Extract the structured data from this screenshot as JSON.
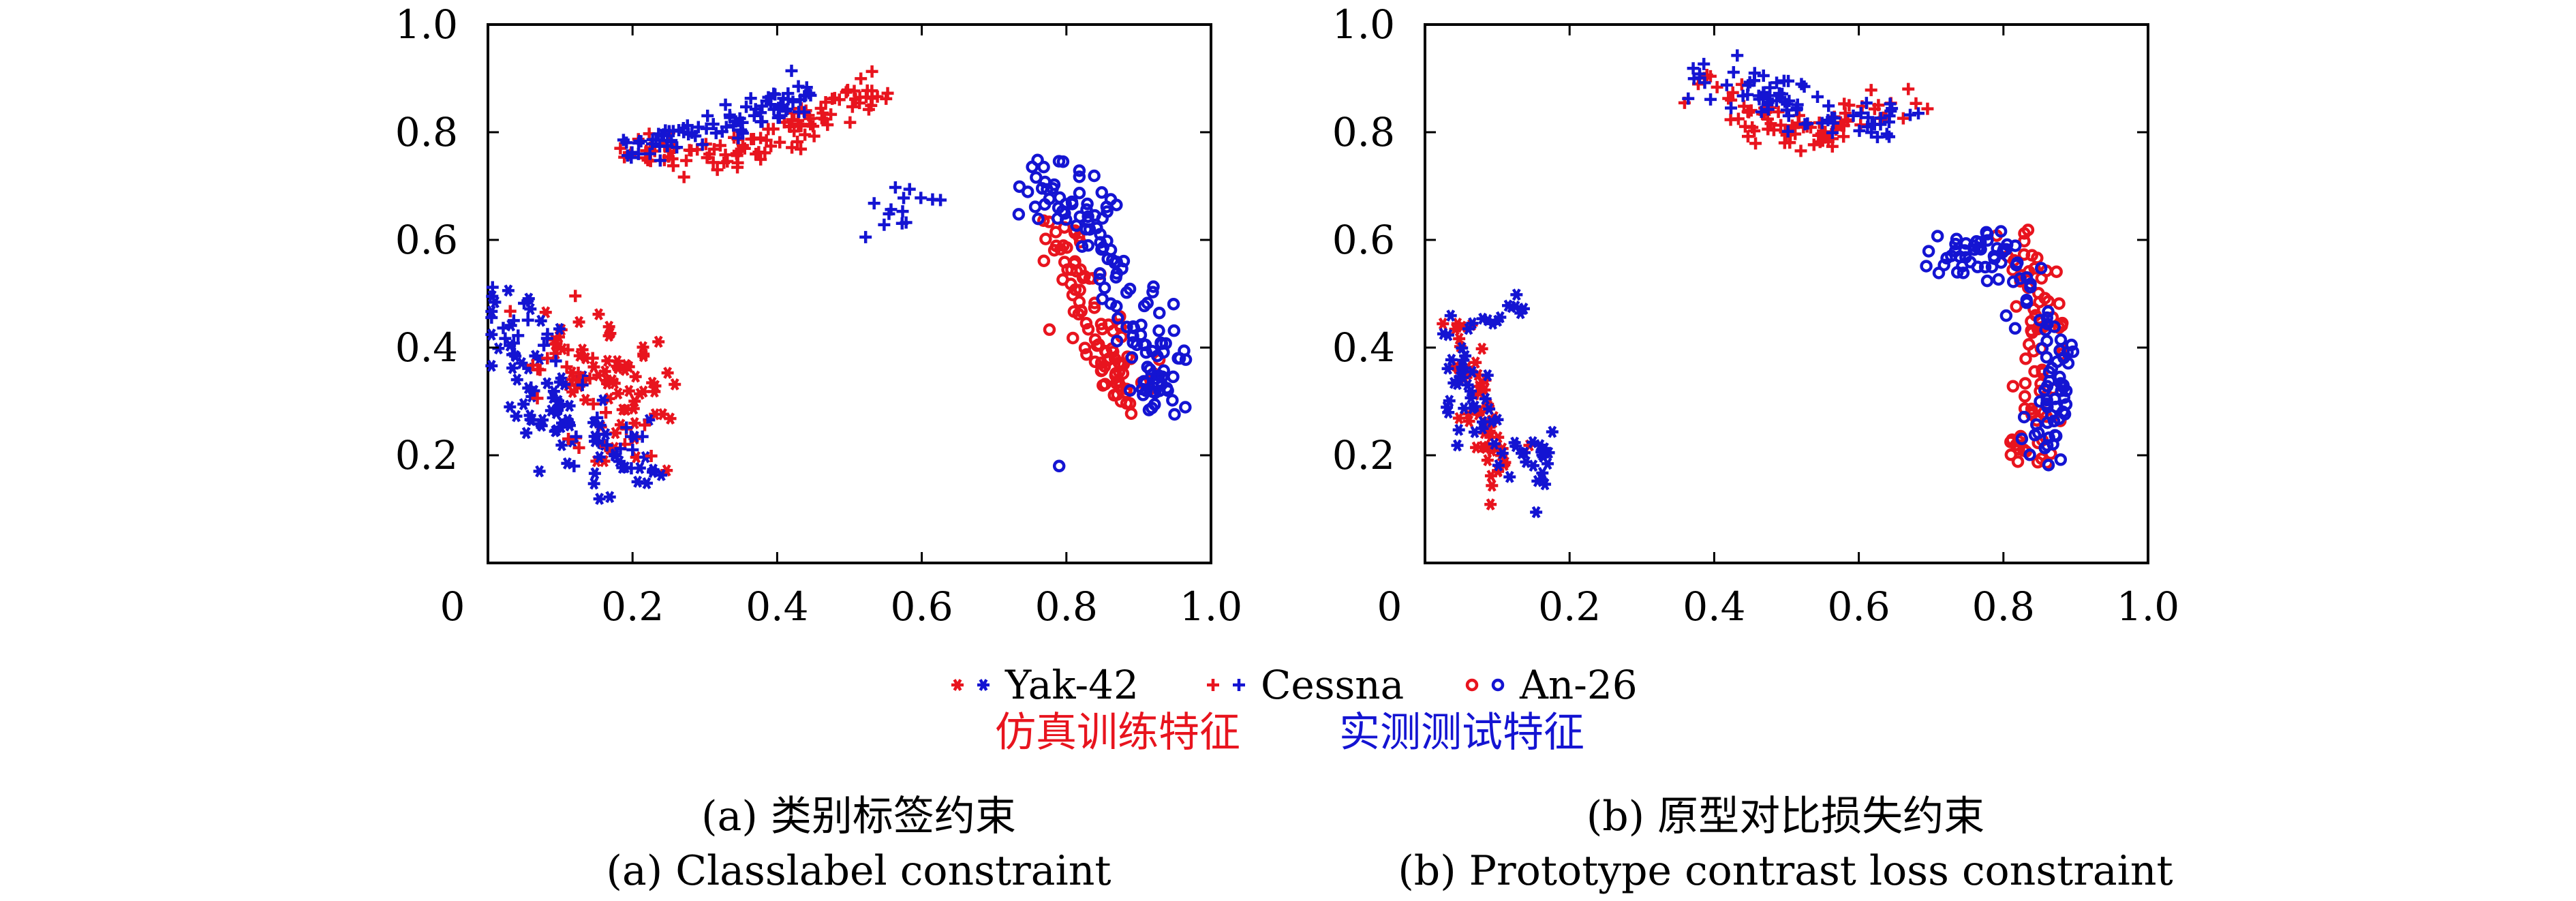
{
  "colors": {
    "sim": "#e8141e",
    "real": "#1414d2",
    "axis": "#000000",
    "panel_bg": "#ffffff"
  },
  "legend": {
    "items": [
      {
        "marker": "star",
        "label": "Yak-42"
      },
      {
        "marker": "plus",
        "label": "Cessna"
      },
      {
        "marker": "circle",
        "label": "An-26"
      }
    ],
    "sim_label": "仿真训练特征",
    "real_label": "实测测试特征"
  },
  "chart_data": [
    {
      "type": "scatter",
      "caption_cn": "(a) 类别标签约束",
      "caption_en": "(a) Classlabel constraint",
      "xlim": [
        0,
        1.0
      ],
      "ylim": [
        0,
        1.0
      ],
      "xticks": [
        "0",
        "0.2",
        "0.4",
        "0.6",
        "0.8",
        "1.0"
      ],
      "yticks": [
        "0.2",
        "0.4",
        "0.6",
        "0.8",
        "1.0"
      ],
      "grid": false,
      "clusters": [
        {
          "class": "Yak-42",
          "marker": "star",
          "source": "sim",
          "path": [
            [
              0.1,
              0.4
            ],
            [
              0.16,
              0.38
            ],
            [
              0.21,
              0.31
            ],
            [
              0.19,
              0.22
            ]
          ],
          "spread": [
            0.03,
            0.04
          ],
          "n": 70
        },
        {
          "class": "Yak-42",
          "marker": "star",
          "source": "real",
          "path": [
            [
              0.02,
              0.48
            ],
            [
              0.05,
              0.35
            ],
            [
              0.1,
              0.26
            ],
            [
              0.16,
              0.2
            ],
            [
              0.22,
              0.19
            ]
          ],
          "spread": [
            0.025,
            0.035
          ],
          "n": 85
        },
        {
          "class": "Cessna",
          "marker": "plus",
          "source": "sim",
          "path": [
            [
              0.2,
              0.78
            ],
            [
              0.3,
              0.75
            ],
            [
              0.4,
              0.78
            ],
            [
              0.46,
              0.83
            ],
            [
              0.54,
              0.88
            ]
          ],
          "spread": [
            0.02,
            0.018
          ],
          "n": 110
        },
        {
          "class": "Cessna",
          "marker": "plus",
          "source": "real",
          "path": [
            [
              0.19,
              0.76
            ],
            [
              0.25,
              0.79
            ],
            [
              0.33,
              0.81
            ],
            [
              0.4,
              0.85
            ],
            [
              0.44,
              0.88
            ]
          ],
          "spread": [
            0.015,
            0.015
          ],
          "n": 90
        },
        {
          "class": "Cessna",
          "marker": "plus",
          "source": "real",
          "path": [
            [
              0.55,
              0.63
            ],
            [
              0.57,
              0.68
            ],
            [
              0.62,
              0.68
            ]
          ],
          "spread": [
            0.012,
            0.02
          ],
          "n": 14
        },
        {
          "class": "Cessna",
          "marker": "plus",
          "source": "sim",
          "path": [
            [
              0.07,
              0.42
            ],
            [
              0.12,
              0.3
            ],
            [
              0.2,
              0.22
            ]
          ],
          "spread": [
            0.03,
            0.03
          ],
          "n": 25
        },
        {
          "class": "Cessna",
          "marker": "plus",
          "source": "real",
          "path": [
            [
              0.03,
              0.5
            ],
            [
              0.06,
              0.38
            ],
            [
              0.12,
              0.24
            ],
            [
              0.2,
              0.2
            ]
          ],
          "spread": [
            0.025,
            0.03
          ],
          "n": 30
        },
        {
          "class": "An-26",
          "marker": "circle",
          "source": "sim",
          "path": [
            [
              0.79,
              0.61
            ],
            [
              0.82,
              0.5
            ],
            [
              0.86,
              0.38
            ],
            [
              0.89,
              0.3
            ]
          ],
          "spread": [
            0.018,
            0.03
          ],
          "n": 95
        },
        {
          "class": "An-26",
          "marker": "circle",
          "source": "real",
          "path": [
            [
              0.76,
              0.71
            ],
            [
              0.83,
              0.66
            ],
            [
              0.88,
              0.52
            ],
            [
              0.92,
              0.38
            ],
            [
              0.93,
              0.28
            ]
          ],
          "spread": [
            0.018,
            0.03
          ],
          "n": 130
        },
        {
          "class": "An-26",
          "marker": "circle",
          "source": "real",
          "path": [
            [
              0.79,
              0.18
            ]
          ],
          "spread": [
            0.0,
            0.0
          ],
          "n": 1
        }
      ]
    },
    {
      "type": "scatter",
      "caption_cn": "(b) 原型对比损失约束",
      "caption_en": "(b) Prototype contrast loss constraint",
      "xlim": [
        0,
        1.0
      ],
      "ylim": [
        0,
        1.0
      ],
      "xticks": [
        "0",
        "0.2",
        "0.4",
        "0.6",
        "0.8",
        "1.0"
      ],
      "yticks": [
        "0.2",
        "0.4",
        "0.6",
        "0.8",
        "1.0"
      ],
      "grid": false,
      "clusters": [
        {
          "class": "Yak-42",
          "marker": "star",
          "source": "sim",
          "path": [
            [
              0.05,
              0.44
            ],
            [
              0.07,
              0.34
            ],
            [
              0.09,
              0.22
            ],
            [
              0.11,
              0.17
            ]
          ],
          "spread": [
            0.015,
            0.03
          ],
          "n": 55
        },
        {
          "class": "Yak-42",
          "marker": "star",
          "source": "real",
          "path": [
            [
              0.04,
              0.44
            ],
            [
              0.05,
              0.32
            ],
            [
              0.08,
              0.24
            ],
            [
              0.14,
              0.2
            ],
            [
              0.17,
              0.19
            ]
          ],
          "spread": [
            0.015,
            0.03
          ],
          "n": 60
        },
        {
          "class": "Yak-42",
          "marker": "star",
          "source": "real",
          "path": [
            [
              0.08,
              0.45
            ],
            [
              0.12,
              0.47
            ],
            [
              0.15,
              0.48
            ]
          ],
          "spread": [
            0.015,
            0.015
          ],
          "n": 12
        },
        {
          "class": "Cessna",
          "marker": "plus",
          "source": "sim",
          "path": [
            [
              0.36,
              0.91
            ],
            [
              0.44,
              0.84
            ],
            [
              0.5,
              0.79
            ],
            [
              0.56,
              0.81
            ],
            [
              0.67,
              0.86
            ]
          ],
          "spread": [
            0.02,
            0.018
          ],
          "n": 85
        },
        {
          "class": "Cessna",
          "marker": "plus",
          "source": "real",
          "path": [
            [
              0.38,
              0.91
            ],
            [
              0.46,
              0.88
            ],
            [
              0.53,
              0.84
            ],
            [
              0.6,
              0.81
            ],
            [
              0.64,
              0.83
            ]
          ],
          "spread": [
            0.02,
            0.02
          ],
          "n": 80
        },
        {
          "class": "An-26",
          "marker": "circle",
          "source": "sim",
          "path": [
            [
              0.82,
              0.59
            ],
            [
              0.84,
              0.5
            ],
            [
              0.86,
              0.4
            ],
            [
              0.84,
              0.27
            ],
            [
              0.83,
              0.2
            ]
          ],
          "spread": [
            0.015,
            0.025
          ],
          "n": 80
        },
        {
          "class": "An-26",
          "marker": "circle",
          "source": "real",
          "path": [
            [
              0.72,
              0.56
            ],
            [
              0.77,
              0.59
            ],
            [
              0.83,
              0.52
            ],
            [
              0.87,
              0.4
            ],
            [
              0.87,
              0.3
            ],
            [
              0.85,
              0.2
            ]
          ],
          "spread": [
            0.015,
            0.025
          ],
          "n": 110
        }
      ]
    }
  ]
}
